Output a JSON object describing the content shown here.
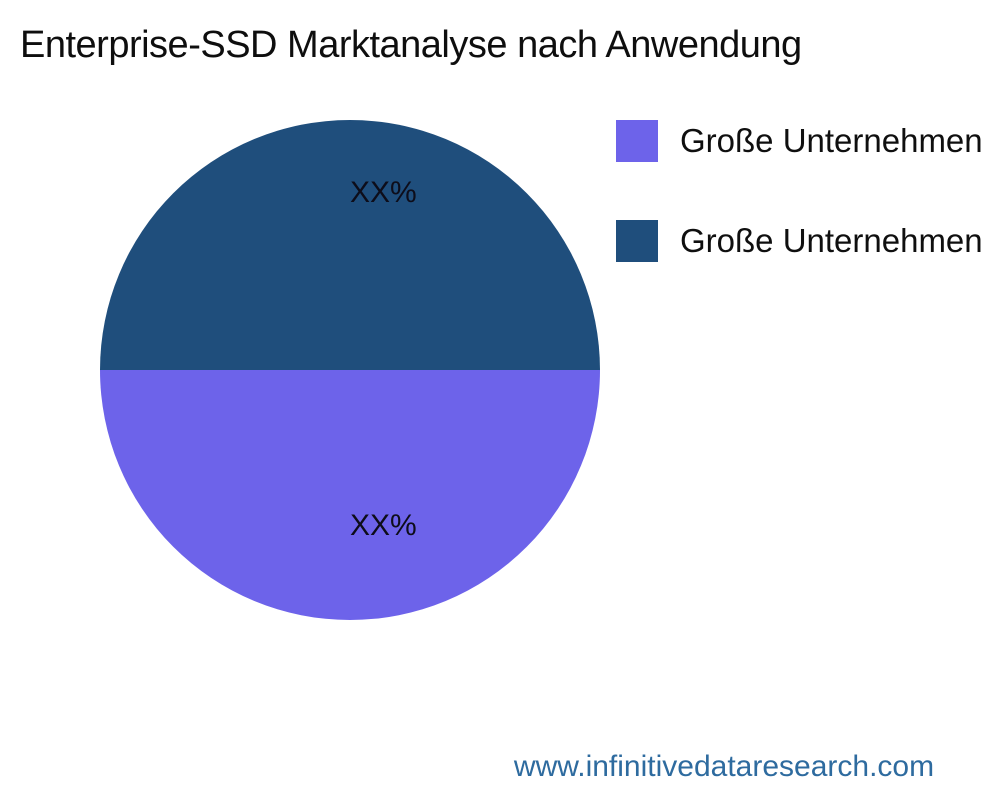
{
  "title": "Enterprise-SSD Marktanalyse nach Anwendung",
  "chart_data": {
    "type": "pie",
    "title": "Enterprise-SSD Marktanalyse nach Anwendung",
    "slices": [
      {
        "label": "Große Unternehmen",
        "value": 50,
        "display_label": "XX%",
        "color": "#1f4e7c",
        "position": "top"
      },
      {
        "label": "Große Unternehmen",
        "value": 50,
        "display_label": "XX%",
        "color": "#6d63ea",
        "position": "bottom"
      }
    ],
    "label_text_color": "#0d0d1a",
    "legend": {
      "position": "right",
      "items": [
        {
          "label": "Große Unternehmen",
          "color": "#6d63ea"
        },
        {
          "label": "Große Unternehmen",
          "color": "#1f4e7c"
        }
      ]
    }
  },
  "footer": {
    "url": "www.infinitivedataresearch.com",
    "color": "#2e6b9f"
  }
}
